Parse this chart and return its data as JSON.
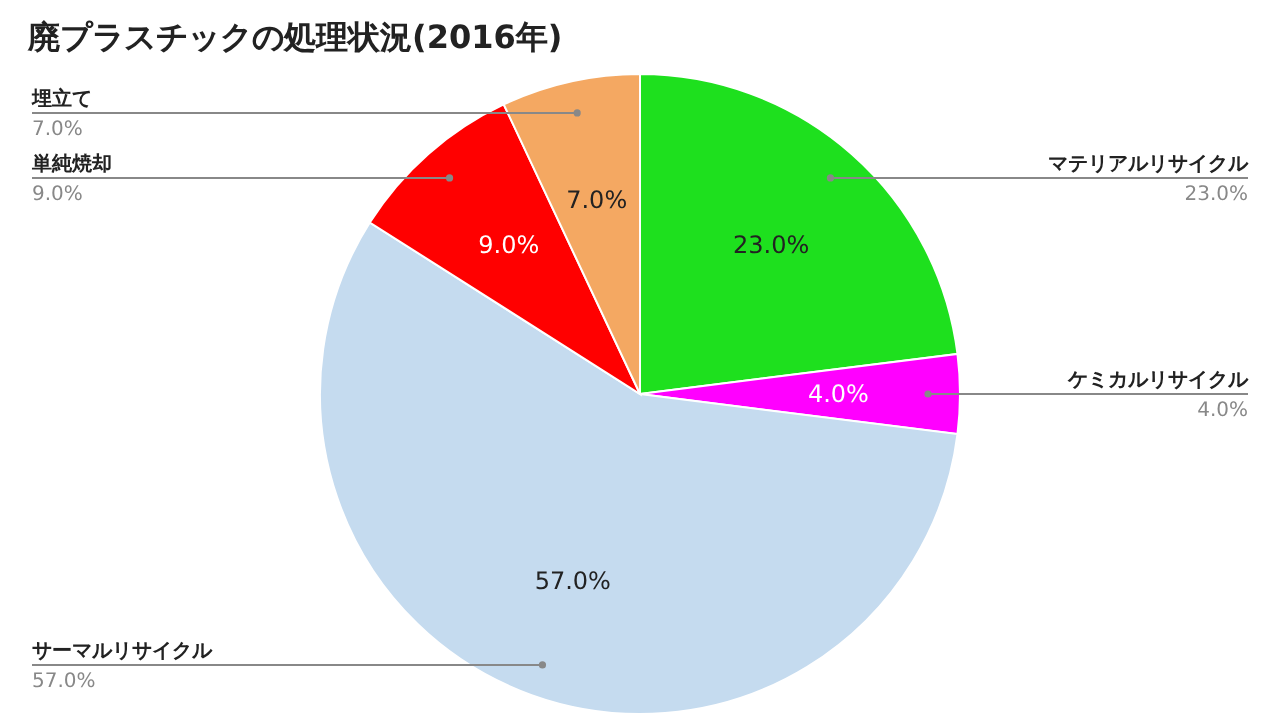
{
  "chart_data": {
    "type": "pie",
    "title": "廃プラスチックの処理状況(2016年)",
    "categories": [
      "マテリアルリサイクル",
      "ケミカルリサイクル",
      "サーマルリサイクル",
      "単純焼却",
      "埋立て"
    ],
    "values": [
      23,
      4,
      57,
      9,
      7
    ],
    "colors": [
      "#1ee01e",
      "#ff00ff",
      "#c5dbef",
      "#ff0000",
      "#f4a862"
    ],
    "value_labels": [
      "23.0%",
      "4.0%",
      "57.0%",
      "9.0%",
      "7.0%"
    ]
  }
}
